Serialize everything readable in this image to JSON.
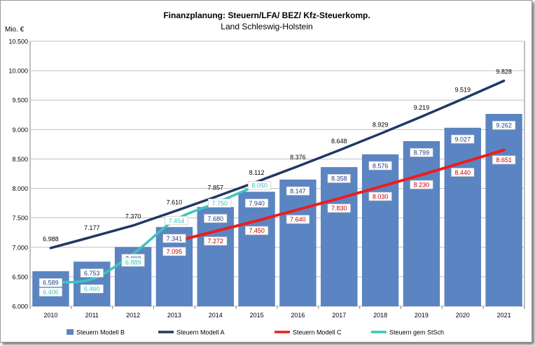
{
  "chart_data": {
    "type": "bar",
    "title": "Finanzplanung: Steuern/LFA/ BEZ/ Kfz-Steuerkomp.",
    "subtitle": "Land Schleswig-Holstein",
    "ylabel": "Mio. €",
    "xlabel": "",
    "ylim": [
      6000,
      10500
    ],
    "yticks": [
      6000,
      6500,
      7000,
      7500,
      8000,
      8500,
      9000,
      9500,
      10000,
      10500
    ],
    "ytick_labels": [
      "6.000",
      "6.500",
      "7.000",
      "7.500",
      "8.000",
      "8.500",
      "9.000",
      "9.500",
      "10.000",
      "10.500"
    ],
    "grid": true,
    "legend_position": "bottom",
    "categories": [
      "2010",
      "2011",
      "2012",
      "2013",
      "2014",
      "2015",
      "2016",
      "2017",
      "2018",
      "2019",
      "2020",
      "2021"
    ],
    "series": [
      {
        "name": "Steuern Modell B",
        "kind": "bar",
        "color": "#5b85c2",
        "label_color": "#1f3f8a",
        "values": [
          6589,
          6753,
          7002,
          7341,
          7680,
          7940,
          8147,
          8358,
          8576,
          8799,
          9027,
          9262
        ],
        "labels": [
          "6.589",
          "6.753",
          "7.002",
          "7.341",
          "7.680",
          "7.940",
          "8.147",
          "8.358",
          "8.576",
          "8.799",
          "9.027",
          "9.262"
        ]
      },
      {
        "name": "Steuern Modell A",
        "kind": "line",
        "color": "#1f3864",
        "label_color": "#000000",
        "values": [
          6988,
          7177,
          7370,
          7610,
          7857,
          8112,
          8376,
          8648,
          8929,
          9219,
          9519,
          9828
        ],
        "labels": [
          "6.988",
          "7.177",
          "7.370",
          "7.610",
          "7.857",
          "8.112",
          "8.376",
          "8.648",
          "8.929",
          "9.219",
          "9.519",
          "9.828"
        ]
      },
      {
        "name": "Steuern Modell C",
        "kind": "line",
        "color": "#ee1c1c",
        "label_color": "#c00000",
        "values": [
          null,
          null,
          null,
          7095,
          7272,
          7450,
          7640,
          7830,
          8030,
          8230,
          8440,
          8651
        ],
        "labels": [
          "",
          "",
          "",
          "7.095",
          "7.272",
          "7.450",
          "7.640",
          "7.830",
          "8.030",
          "8.230",
          "8.440",
          "8.651"
        ]
      },
      {
        "name": "Steuern gem StSch",
        "kind": "line",
        "color": "#3cc4c0",
        "label_color": "#3cc4c0",
        "values": [
          6406,
          6460,
          6889,
          7454,
          7750,
          8050,
          null,
          null,
          null,
          null,
          null,
          null
        ],
        "labels": [
          "6.406",
          "6.460",
          "6.889",
          "7.454",
          "7.750",
          "8.050",
          "",
          "",
          "",
          "",
          "",
          ""
        ]
      }
    ]
  }
}
